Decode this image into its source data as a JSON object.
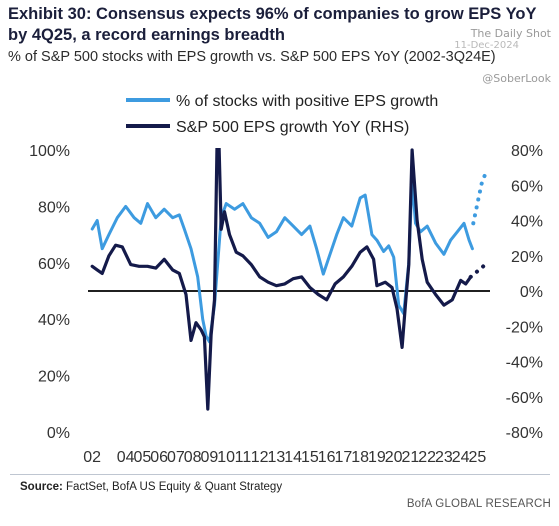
{
  "header": {
    "title": "Exhibit 30: Consensus expects 96% of companies to grow EPS YoY by 4Q25, a record earnings breadth",
    "subtitle": "% of S&P 500 stocks with EPS growth vs. S&P 500 EPS YoY (2002-3Q24E)"
  },
  "watermark": {
    "brand": "The Daily Shot",
    "date": "11-Dec-2024",
    "handle": "@SoberLook"
  },
  "footer": {
    "source_label": "Source:",
    "source_text": "FactSet, BofA US Equity & Quant Strategy",
    "brand": "BofA GLOBAL RESEARCH"
  },
  "colors": {
    "pct_line": "#3d9be0",
    "eps_line": "#141a4a",
    "zero_line": "#000000"
  },
  "chart_data": {
    "type": "line",
    "title": "",
    "xlabel": "",
    "ylabel": "",
    "x_ticks": [
      "02",
      "04",
      "05",
      "06",
      "07",
      "08",
      "09",
      "10",
      "11",
      "12",
      "13",
      "14",
      "15",
      "16",
      "17",
      "18",
      "19",
      "20",
      "21",
      "22",
      "23",
      "24",
      "25"
    ],
    "x_range": [
      2001.75,
      2025.75
    ],
    "y_left": {
      "ticks": [
        "0%",
        "20%",
        "40%",
        "60%",
        "80%",
        "100%"
      ],
      "range": [
        0,
        100
      ]
    },
    "y_right": {
      "ticks": [
        "-80%",
        "-60%",
        "-40%",
        "-20%",
        "0%",
        "20%",
        "40%",
        "60%",
        "80%"
      ],
      "range": [
        -80,
        80
      ]
    },
    "zero_line_rhs": 0,
    "legend": {
      "placement": "top",
      "entries": [
        {
          "label": "% of stocks with positive EPS growth",
          "series": "pct"
        },
        {
          "label": "S&P 500 EPS growth YoY (RHS)",
          "series": "eps"
        }
      ]
    },
    "series": [
      {
        "id": "pct",
        "name": "% of stocks with positive EPS growth",
        "axis": "left",
        "x": [
          2002.0,
          2002.3,
          2002.6,
          2003.0,
          2003.5,
          2004.0,
          2004.5,
          2004.9,
          2005.3,
          2005.8,
          2006.3,
          2006.8,
          2007.2,
          2007.5,
          2007.9,
          2008.3,
          2008.6,
          2008.8,
          2009.0,
          2009.3,
          2009.7,
          2010.0,
          2010.5,
          2011.0,
          2011.5,
          2012.0,
          2012.5,
          2013.0,
          2013.5,
          2014.0,
          2014.5,
          2015.0,
          2015.4,
          2015.8,
          2016.2,
          2016.6,
          2017.0,
          2017.5,
          2018.0,
          2018.3,
          2018.7,
          2019.0,
          2019.4,
          2019.7,
          2020.0,
          2020.3,
          2020.6,
          2020.9,
          2021.1,
          2021.3,
          2021.6,
          2022.0,
          2022.5,
          2023.0,
          2023.4,
          2023.8,
          2024.2,
          2024.5,
          2024.7
        ],
        "y": [
          72,
          75,
          65,
          70,
          76,
          80,
          76,
          74,
          81,
          76,
          79,
          76,
          77,
          72,
          65,
          55,
          40,
          34,
          32,
          45,
          76,
          81,
          79,
          81,
          76,
          74,
          69,
          71,
          76,
          73,
          70,
          73,
          65,
          56,
          63,
          70,
          76,
          73,
          83,
          84,
          70,
          68,
          64,
          66,
          62,
          45,
          42,
          60,
          90,
          74,
          71,
          73,
          67,
          63,
          68,
          71,
          74,
          68,
          65
        ],
        "dash": false
      },
      {
        "id": "pct_fcst",
        "name": "",
        "axis": "left",
        "x": [
          2024.75,
          2025.0,
          2025.25,
          2025.5
        ],
        "y": [
          74,
          81,
          88,
          92
        ],
        "dash": true
      },
      {
        "id": "eps",
        "name": "S&P 500 EPS growth YoY (RHS)",
        "axis": "right",
        "x": [
          2002.0,
          2002.3,
          2002.6,
          2003.0,
          2003.4,
          2003.8,
          2004.3,
          2004.8,
          2005.3,
          2005.8,
          2006.3,
          2006.8,
          2007.2,
          2007.6,
          2007.9,
          2008.2,
          2008.5,
          2008.7,
          2008.9,
          2009.1,
          2009.3,
          2009.5,
          2009.7,
          2009.9,
          2010.2,
          2010.6,
          2011.0,
          2011.5,
          2012.0,
          2012.5,
          2013.0,
          2013.5,
          2014.0,
          2014.5,
          2015.0,
          2015.5,
          2016.0,
          2016.5,
          2017.0,
          2017.5,
          2018.0,
          2018.4,
          2018.8,
          2019.0,
          2019.5,
          2019.9,
          2020.2,
          2020.5,
          2020.7,
          2020.9,
          2021.1,
          2021.4,
          2021.7,
          2022.0,
          2022.5,
          2023.0,
          2023.5,
          2024.0,
          2024.3,
          2024.6
        ],
        "y": [
          14,
          12,
          10,
          20,
          26,
          25,
          15,
          14,
          14,
          13,
          18,
          12,
          10,
          -2,
          -28,
          -18,
          -22,
          -26,
          -67,
          -25,
          -5,
          110,
          35,
          45,
          32,
          22,
          20,
          15,
          8,
          5,
          3,
          4,
          7,
          8,
          2,
          -2,
          -5,
          4,
          8,
          14,
          22,
          25,
          18,
          3,
          5,
          2,
          -10,
          -32,
          -8,
          15,
          80,
          40,
          18,
          5,
          -2,
          -8,
          -5,
          6,
          4,
          8
        ],
        "dash": false
      },
      {
        "id": "eps_fcst",
        "name": "",
        "axis": "right",
        "x": [
          2024.6,
          2024.85,
          2025.1,
          2025.35,
          2025.6
        ],
        "y": [
          8,
          10,
          12,
          14,
          16
        ],
        "dash": true
      }
    ]
  }
}
